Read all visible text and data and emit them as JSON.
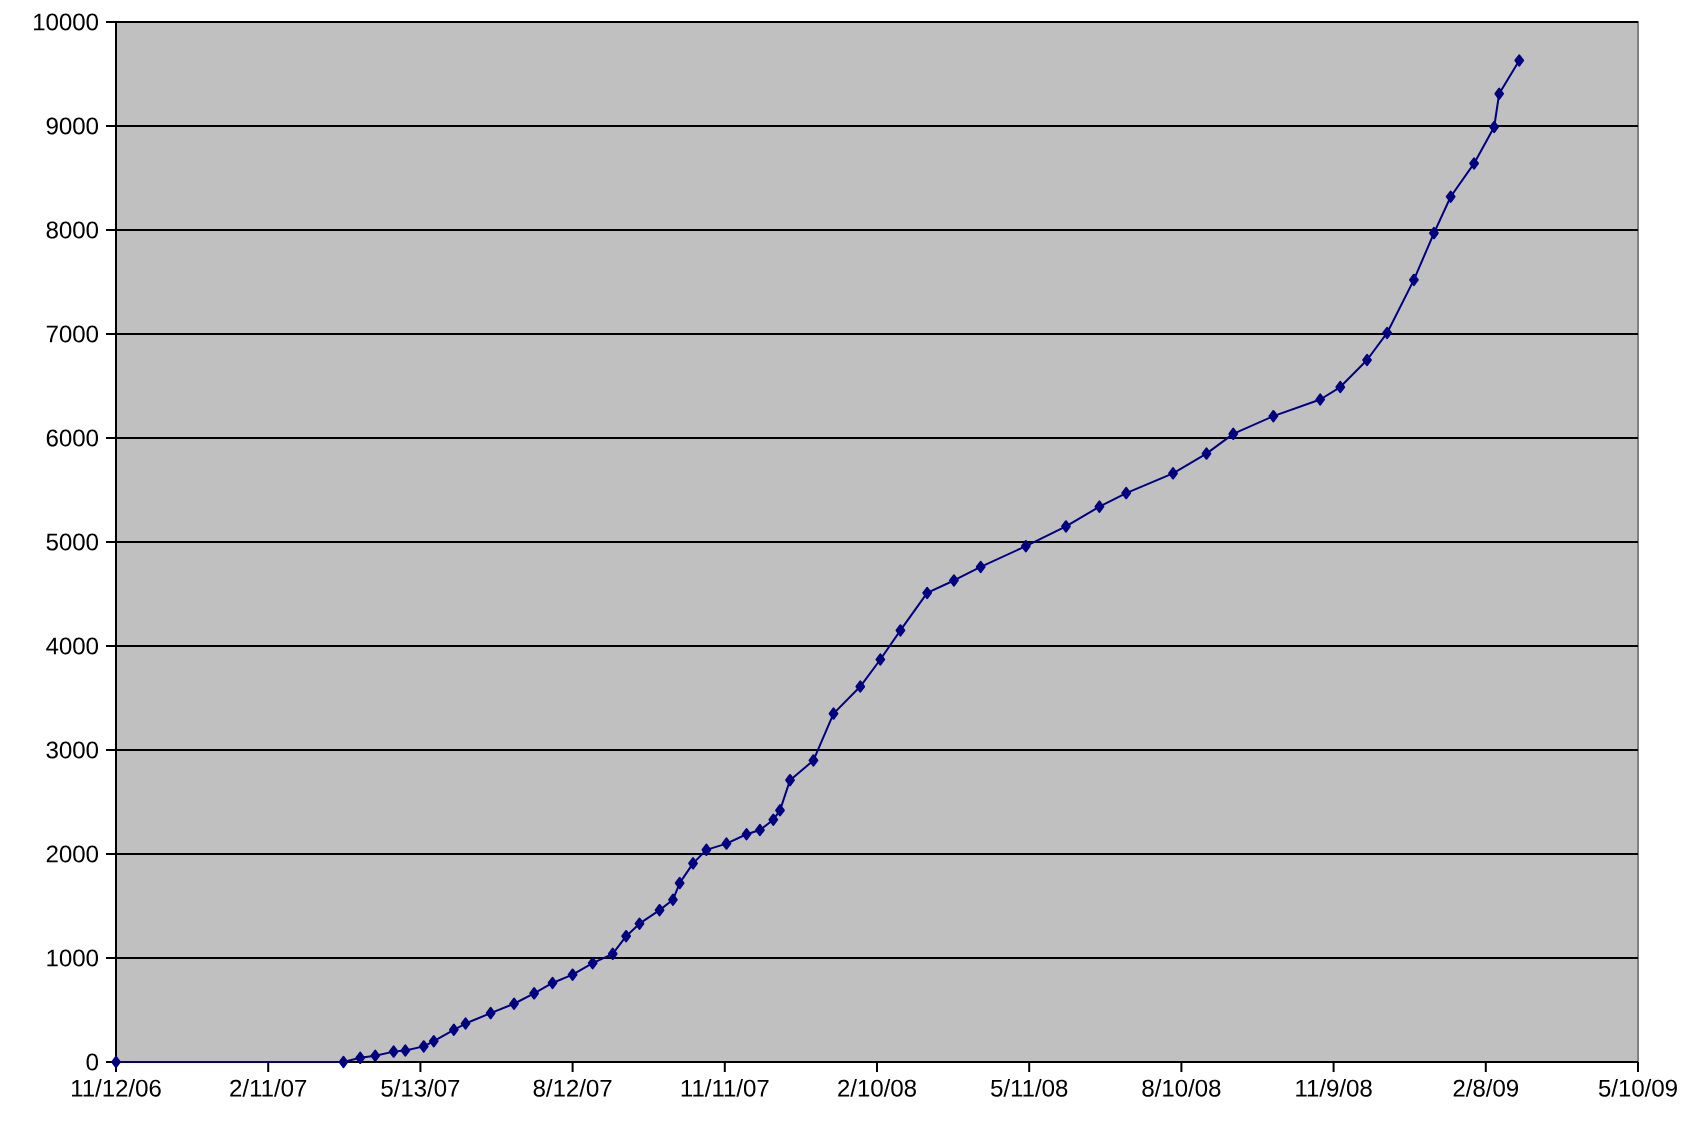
{
  "chart_data": {
    "type": "line",
    "x": [
      "2006-11-12",
      "2007-03-28",
      "2007-04-07",
      "2007-04-16",
      "2007-04-27",
      "2007-05-04",
      "2007-05-15",
      "2007-05-21",
      "2007-06-02",
      "2007-06-09",
      "2007-06-24",
      "2007-07-08",
      "2007-07-20",
      "2007-07-31",
      "2007-08-12",
      "2007-08-24",
      "2007-09-05",
      "2007-09-13",
      "2007-09-21",
      "2007-10-03",
      "2007-10-11",
      "2007-10-15",
      "2007-10-23",
      "2007-10-31",
      "2007-11-12",
      "2007-11-24",
      "2007-12-02",
      "2007-12-10",
      "2007-12-14",
      "2007-12-20",
      "2008-01-03",
      "2008-01-15",
      "2008-01-31",
      "2008-02-12",
      "2008-02-24",
      "2008-03-11",
      "2008-03-27",
      "2008-04-12",
      "2008-05-09",
      "2008-06-02",
      "2008-06-22",
      "2008-07-08",
      "2008-08-05",
      "2008-08-25",
      "2008-09-10",
      "2008-10-04",
      "2008-11-01",
      "2008-11-13",
      "2008-11-29",
      "2008-12-11",
      "2008-12-27",
      "2009-01-08",
      "2009-01-18",
      "2009-02-01",
      "2009-02-13",
      "2009-02-16",
      "2009-02-28"
    ],
    "series": [
      {
        "color": "#000080",
        "values": [
          0,
          0,
          40,
          60,
          100,
          110,
          150,
          200,
          310,
          370,
          470,
          560,
          660,
          760,
          840,
          950,
          1040,
          1210,
          1330,
          1460,
          1560,
          1720,
          1910,
          2040,
          2100,
          2190,
          2230,
          2330,
          2420,
          2710,
          2900,
          3350,
          3610,
          3870,
          4150,
          4510,
          4630,
          4760,
          4960,
          5150,
          5340,
          5470,
          5660,
          5850,
          6040,
          6210,
          6370,
          6490,
          6750,
          7010,
          7520,
          7970,
          8320,
          8640,
          8990,
          9310,
          9630
        ]
      }
    ],
    "xlim": [
      "2006-11-12",
      "2009-05-10"
    ],
    "xticks": [
      {
        "value": "2006-11-12",
        "label": "11/12/06"
      },
      {
        "value": "2007-02-11",
        "label": "2/11/07"
      },
      {
        "value": "2007-05-13",
        "label": "5/13/07"
      },
      {
        "value": "2007-08-12",
        "label": "8/12/07"
      },
      {
        "value": "2007-11-11",
        "label": "11/11/07"
      },
      {
        "value": "2008-02-10",
        "label": "2/10/08"
      },
      {
        "value": "2008-05-11",
        "label": "5/11/08"
      },
      {
        "value": "2008-08-10",
        "label": "8/10/08"
      },
      {
        "value": "2008-11-09",
        "label": "11/9/08"
      },
      {
        "value": "2009-02-08",
        "label": "2/8/09"
      },
      {
        "value": "2009-05-10",
        "label": "5/10/09"
      }
    ],
    "ylim": [
      0,
      10000
    ],
    "yticks": [
      0,
      1000,
      2000,
      3000,
      4000,
      5000,
      6000,
      7000,
      8000,
      9000,
      10000
    ],
    "grid": "y",
    "marker": "diamond",
    "line_style": "solid"
  }
}
